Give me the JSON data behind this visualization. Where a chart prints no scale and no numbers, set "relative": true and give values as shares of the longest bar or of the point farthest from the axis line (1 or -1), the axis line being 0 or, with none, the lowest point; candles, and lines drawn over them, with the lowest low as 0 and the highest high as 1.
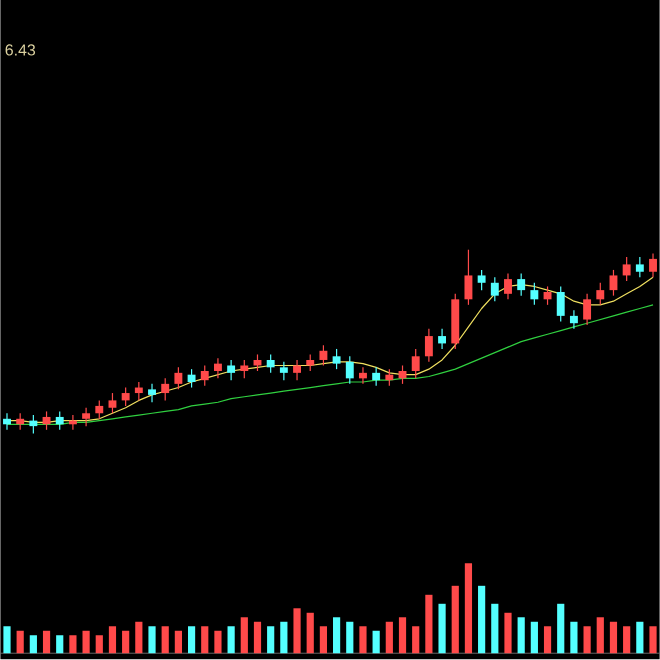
{
  "chart_data": [
    {
      "type": "candlestick",
      "relative": true,
      "annotations": [
        "6.43"
      ],
      "categories": [
        null,
        null,
        null,
        null,
        null,
        null,
        null,
        null,
        null,
        null,
        null,
        null,
        null,
        null,
        null,
        null,
        null,
        null,
        null,
        null,
        null,
        null,
        null,
        null,
        null,
        null,
        null,
        null,
        null,
        null,
        null,
        null,
        null,
        null,
        null,
        null,
        null,
        null,
        null,
        null,
        null,
        null,
        null,
        null,
        null,
        null,
        null,
        null,
        null,
        null
      ],
      "ohlc": [
        [
          0.08,
          0.11,
          0.02,
          0.05
        ],
        [
          0.05,
          0.11,
          0.02,
          0.08
        ],
        [
          0.07,
          0.1,
          0,
          0.04
        ],
        [
          0.05,
          0.12,
          0.02,
          0.09
        ],
        [
          0.09,
          0.12,
          0.02,
          0.05
        ],
        [
          0.05,
          0.1,
          0.02,
          0.07
        ],
        [
          0.08,
          0.14,
          0.04,
          0.11
        ],
        [
          0.11,
          0.18,
          0.08,
          0.15
        ],
        [
          0.14,
          0.22,
          0.11,
          0.18
        ],
        [
          0.18,
          0.25,
          0.15,
          0.22
        ],
        [
          0.22,
          0.28,
          0.18,
          0.25
        ],
        [
          0.24,
          0.27,
          0.17,
          0.21
        ],
        [
          0.22,
          0.3,
          0.18,
          0.27
        ],
        [
          0.27,
          0.36,
          0.24,
          0.33
        ],
        [
          0.32,
          0.35,
          0.25,
          0.28
        ],
        [
          0.29,
          0.37,
          0.26,
          0.34
        ],
        [
          0.34,
          0.41,
          0.3,
          0.38
        ],
        [
          0.37,
          0.4,
          0.29,
          0.33
        ],
        [
          0.34,
          0.4,
          0.3,
          0.37
        ],
        [
          0.37,
          0.43,
          0.34,
          0.4
        ],
        [
          0.4,
          0.43,
          0.33,
          0.36
        ],
        [
          0.36,
          0.39,
          0.29,
          0.33
        ],
        [
          0.33,
          0.4,
          0.29,
          0.37
        ],
        [
          0.37,
          0.43,
          0.34,
          0.4
        ],
        [
          0.4,
          0.48,
          0.37,
          0.45
        ],
        [
          0.42,
          0.46,
          0.35,
          0.38
        ],
        [
          0.39,
          0.42,
          0.27,
          0.3
        ],
        [
          0.3,
          0.36,
          0.27,
          0.33
        ],
        [
          0.33,
          0.36,
          0.26,
          0.29
        ],
        [
          0.29,
          0.35,
          0.26,
          0.32
        ],
        [
          0.3,
          0.37,
          0.27,
          0.34
        ],
        [
          0.34,
          0.46,
          0.3,
          0.42
        ],
        [
          0.42,
          0.57,
          0.39,
          0.53
        ],
        [
          0.53,
          0.57,
          0.46,
          0.49
        ],
        [
          0.49,
          0.76,
          0.46,
          0.73
        ],
        [
          0.73,
          1.0,
          0.7,
          0.86
        ],
        [
          0.86,
          0.89,
          0.78,
          0.82
        ],
        [
          0.82,
          0.85,
          0.72,
          0.75
        ],
        [
          0.76,
          0.87,
          0.73,
          0.84
        ],
        [
          0.84,
          0.87,
          0.75,
          0.78
        ],
        [
          0.78,
          0.82,
          0.7,
          0.73
        ],
        [
          0.73,
          0.8,
          0.7,
          0.77
        ],
        [
          0.77,
          0.8,
          0.61,
          0.64
        ],
        [
          0.64,
          0.67,
          0.57,
          0.6
        ],
        [
          0.62,
          0.76,
          0.59,
          0.73
        ],
        [
          0.73,
          0.82,
          0.7,
          0.78
        ],
        [
          0.78,
          0.89,
          0.75,
          0.86
        ],
        [
          0.86,
          0.96,
          0.83,
          0.92
        ],
        [
          0.92,
          0.96,
          0.85,
          0.88
        ],
        [
          0.88,
          0.98,
          0.85,
          0.95
        ]
      ],
      "colors": [
        "#54ffff",
        "#ff4a4a",
        "#54ffff",
        "#ff4a4a",
        "#54ffff",
        "#ff4a4a",
        "#ff4a4a",
        "#ff4a4a",
        "#ff4a4a",
        "#ff4a4a",
        "#ff4a4a",
        "#54ffff",
        "#ff4a4a",
        "#ff4a4a",
        "#54ffff",
        "#ff4a4a",
        "#ff4a4a",
        "#54ffff",
        "#ff4a4a",
        "#ff4a4a",
        "#54ffff",
        "#54ffff",
        "#ff4a4a",
        "#ff4a4a",
        "#ff4a4a",
        "#54ffff",
        "#54ffff",
        "#ff4a4a",
        "#54ffff",
        "#ff4a4a",
        "#ff4a4a",
        "#ff4a4a",
        "#ff4a4a",
        "#54ffff",
        "#ff4a4a",
        "#ff4a4a",
        "#54ffff",
        "#54ffff",
        "#ff4a4a",
        "#54ffff",
        "#54ffff",
        "#ff4a4a",
        "#54ffff",
        "#54ffff",
        "#ff4a4a",
        "#ff4a4a",
        "#ff4a4a",
        "#ff4a4a",
        "#54ffff",
        "#ff4a4a"
      ],
      "series": [
        {
          "type": "line",
          "color": "#f0e060",
          "values": [
            0.07,
            0.07,
            0.06,
            0.06,
            0.07,
            0.07,
            0.07,
            0.08,
            0.11,
            0.14,
            0.18,
            0.21,
            0.23,
            0.25,
            0.28,
            0.3,
            0.32,
            0.34,
            0.35,
            0.36,
            0.37,
            0.37,
            0.37,
            0.37,
            0.38,
            0.39,
            0.39,
            0.38,
            0.36,
            0.33,
            0.32,
            0.32,
            0.35,
            0.4,
            0.48,
            0.58,
            0.68,
            0.76,
            0.8,
            0.81,
            0.8,
            0.78,
            0.76,
            0.72,
            0.7,
            0.7,
            0.72,
            0.76,
            0.8,
            0.85
          ]
        },
        {
          "type": "line",
          "color": "#30d040",
          "values": [
            0.05,
            0.05,
            0.05,
            0.05,
            0.05,
            0.06,
            0.06,
            0.07,
            0.08,
            0.09,
            0.1,
            0.11,
            0.12,
            0.13,
            0.15,
            0.16,
            0.17,
            0.19,
            0.2,
            0.21,
            0.22,
            0.23,
            0.24,
            0.25,
            0.26,
            0.27,
            0.28,
            0.28,
            0.29,
            0.29,
            0.3,
            0.3,
            0.31,
            0.33,
            0.35,
            0.38,
            0.41,
            0.44,
            0.47,
            0.5,
            0.52,
            0.54,
            0.56,
            0.58,
            0.6,
            0.62,
            0.64,
            0.66,
            0.68,
            0.7
          ]
        }
      ]
    },
    {
      "type": "bar",
      "relative": true,
      "categories": [
        null,
        null,
        null,
        null,
        null,
        null,
        null,
        null,
        null,
        null,
        null,
        null,
        null,
        null,
        null,
        null,
        null,
        null,
        null,
        null,
        null,
        null,
        null,
        null,
        null,
        null,
        null,
        null,
        null,
        null,
        null,
        null,
        null,
        null,
        null,
        null,
        null,
        null,
        null,
        null,
        null,
        null,
        null,
        null,
        null,
        null,
        null,
        null,
        null,
        null
      ],
      "values": [
        0.3,
        0.25,
        0.2,
        0.25,
        0.2,
        0.2,
        0.25,
        0.2,
        0.3,
        0.25,
        0.35,
        0.3,
        0.3,
        0.25,
        0.3,
        0.3,
        0.25,
        0.3,
        0.4,
        0.35,
        0.3,
        0.35,
        0.5,
        0.45,
        0.3,
        0.4,
        0.35,
        0.3,
        0.25,
        0.35,
        0.4,
        0.3,
        0.65,
        0.55,
        0.75,
        1.0,
        0.75,
        0.55,
        0.45,
        0.4,
        0.35,
        0.3,
        0.55,
        0.35,
        0.3,
        0.4,
        0.35,
        0.3,
        0.35,
        0.3
      ],
      "colors": [
        "#54ffff",
        "#ff4a4a",
        "#54ffff",
        "#ff4a4a",
        "#54ffff",
        "#ff4a4a",
        "#ff4a4a",
        "#ff4a4a",
        "#ff4a4a",
        "#ff4a4a",
        "#ff4a4a",
        "#54ffff",
        "#ff4a4a",
        "#ff4a4a",
        "#54ffff",
        "#ff4a4a",
        "#ff4a4a",
        "#54ffff",
        "#ff4a4a",
        "#ff4a4a",
        "#54ffff",
        "#54ffff",
        "#ff4a4a",
        "#ff4a4a",
        "#ff4a4a",
        "#54ffff",
        "#54ffff",
        "#ff4a4a",
        "#54ffff",
        "#ff4a4a",
        "#ff4a4a",
        "#ff4a4a",
        "#ff4a4a",
        "#54ffff",
        "#ff4a4a",
        "#ff4a4a",
        "#54ffff",
        "#54ffff",
        "#ff4a4a",
        "#54ffff",
        "#54ffff",
        "#ff4a4a",
        "#54ffff",
        "#54ffff",
        "#ff4a4a",
        "#ff4a4a",
        "#ff4a4a",
        "#ff4a4a",
        "#54ffff",
        "#ff4a4a"
      ]
    }
  ]
}
